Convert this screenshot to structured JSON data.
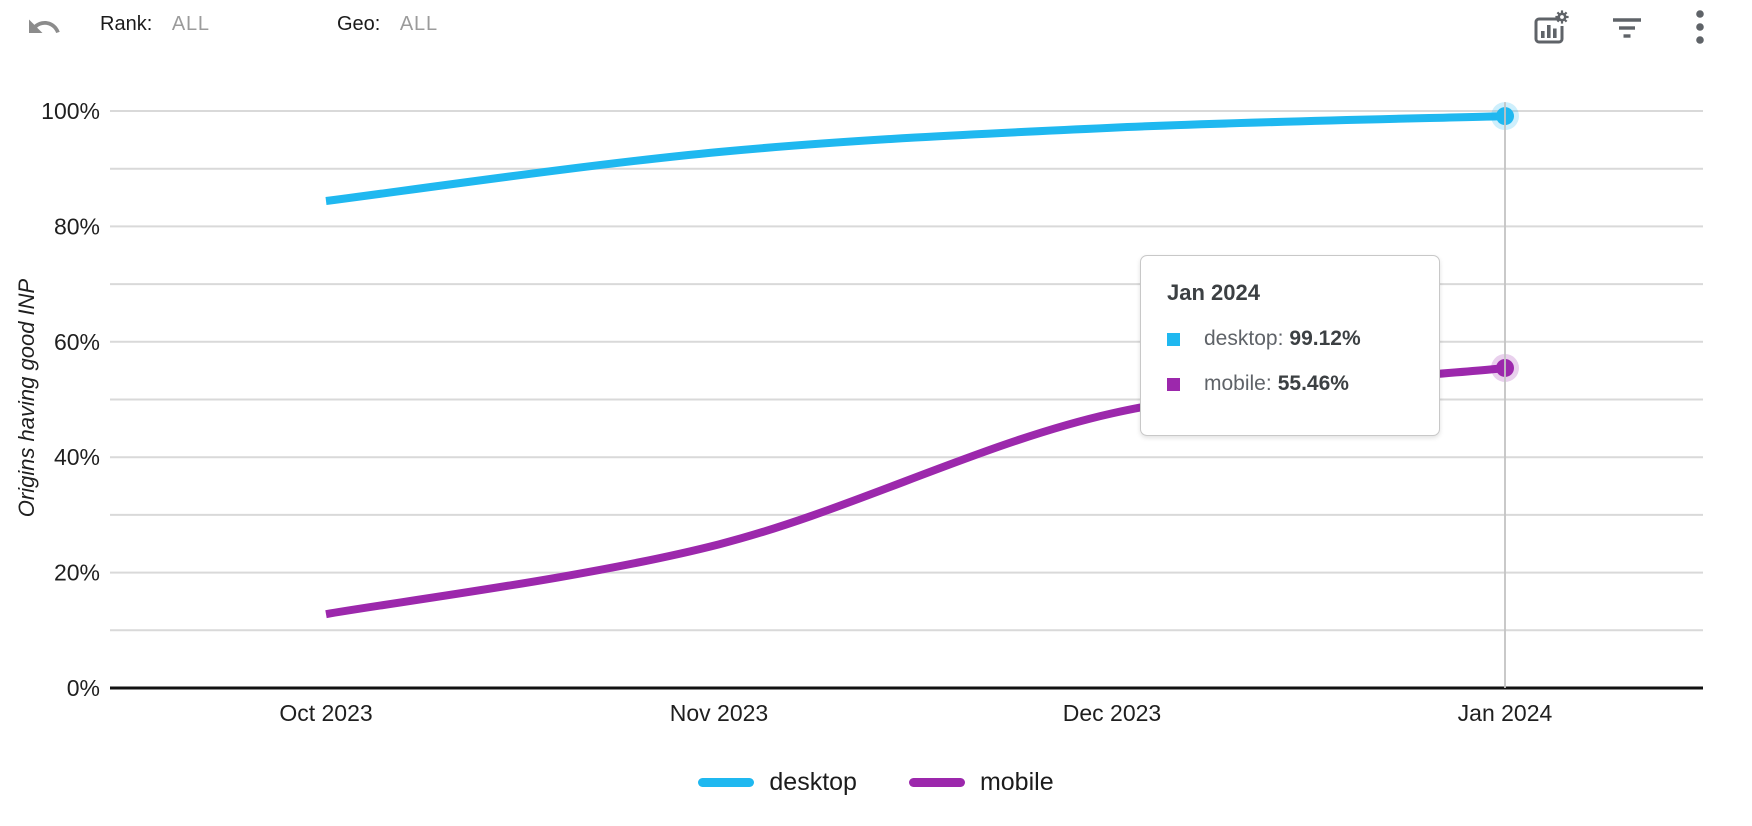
{
  "topbar": {
    "rank_label": "Rank:",
    "rank_value": "ALL",
    "geo_label": "Geo:",
    "geo_value": "ALL",
    "icons": [
      "undo-icon",
      "chart-settings-icon",
      "filter-icon",
      "more-vert-icon"
    ]
  },
  "chart_data": {
    "type": "line",
    "title": "",
    "xlabel": "",
    "ylabel": "Origins having good INP",
    "x": [
      "Oct 2023",
      "Nov 2023",
      "Dec 2023",
      "Jan 2024"
    ],
    "series": [
      {
        "name": "desktop",
        "color": "#1FB8F0",
        "values": [
          84.4,
          92.9,
          97.1,
          99.12
        ]
      },
      {
        "name": "mobile",
        "color": "#9C28AC",
        "values": [
          12.8,
          24.9,
          47.6,
          55.46
        ]
      }
    ],
    "ylim": [
      0,
      100
    ],
    "y_ticks": [
      0,
      20,
      40,
      60,
      80,
      100
    ],
    "y_tick_suffix": "%",
    "y_gridline_step": 10,
    "grid": "horizontal",
    "curve": "smooth",
    "legend_position": "bottom",
    "highlighted_x": "Jan 2024"
  },
  "tooltip": {
    "title": "Jan 2024",
    "rows": [
      {
        "label": "desktop",
        "value": "99.12%"
      },
      {
        "label": "mobile",
        "value": "55.46%"
      }
    ]
  }
}
